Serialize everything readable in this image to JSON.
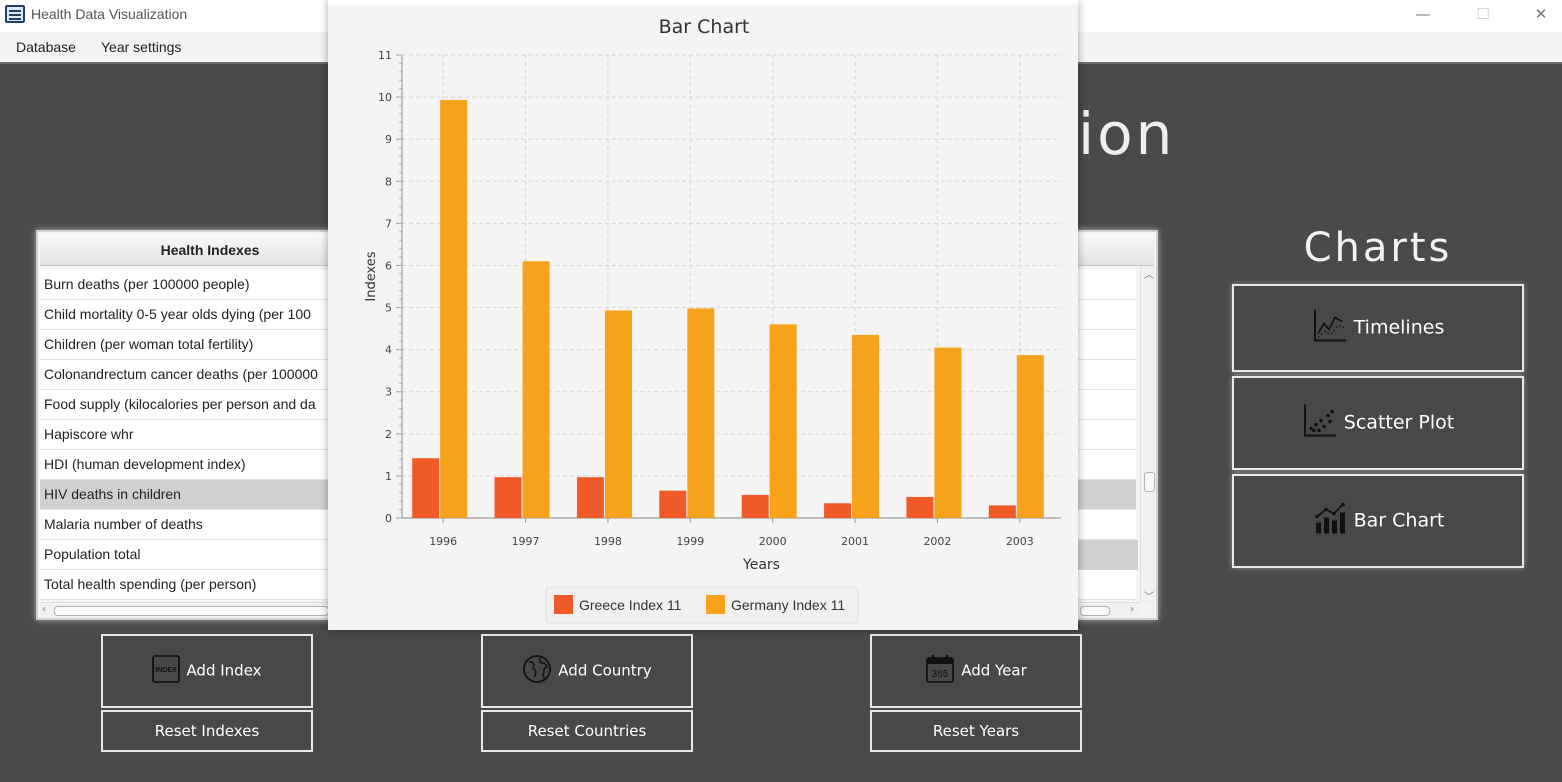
{
  "window": {
    "title": "Health Data Visualization",
    "minimize": "—",
    "maximize": "☐",
    "close": "✕"
  },
  "menu": {
    "database": "Database",
    "year_settings": "Year settings"
  },
  "app_heading": "ion",
  "table": {
    "header": "Health Indexes",
    "rows": [
      "Burn deaths (per 100000 people)",
      "Child mortality 0-5 year olds dying (per 100",
      "Children (per woman total fertility)",
      "Colonandrectum cancer deaths (per 100000",
      "Food supply (kilocalories per person and da",
      "Hapiscore whr",
      "HDI (human development index)",
      "HIV deaths in children",
      "Malaria number of deaths",
      "Population total",
      "Total health spending (per person)"
    ],
    "selected_row": 7
  },
  "charts_panel": {
    "heading": "Charts",
    "timelines": "Timelines",
    "scatter": "Scatter Plot",
    "bar": "Bar Chart"
  },
  "buttons": {
    "add_index": "Add Index",
    "reset_indexes": "Reset Indexes",
    "add_country": "Add Country",
    "reset_countries": "Reset Countries",
    "add_year": "Add Year",
    "reset_years": "Reset Years"
  },
  "icons": {
    "index": "index-icon",
    "globe": "globe-icon",
    "calendar": "calendar-icon",
    "calendar_text": "365",
    "index_text": "INDEX"
  },
  "chart_data": {
    "type": "bar",
    "title": "Bar Chart",
    "xlabel": "Years",
    "ylabel": "Indexes",
    "categories": [
      "1996",
      "1997",
      "1998",
      "1999",
      "2000",
      "2001",
      "2002",
      "2003"
    ],
    "series": [
      {
        "name": "Greece Index 11",
        "color": "#f05a28",
        "values": [
          1.42,
          0.97,
          0.97,
          0.65,
          0.55,
          0.35,
          0.5,
          0.3
        ]
      },
      {
        "name": "Germany Index 11",
        "color": "#f7a21b",
        "values": [
          9.93,
          6.1,
          4.93,
          4.98,
          4.6,
          4.35,
          4.05,
          3.87
        ]
      }
    ],
    "ylim": [
      0,
      11
    ],
    "yticks": [
      0,
      1,
      2,
      3,
      4,
      5,
      6,
      7,
      8,
      9,
      10,
      11
    ],
    "grid": true,
    "legend": "bottom-center"
  }
}
